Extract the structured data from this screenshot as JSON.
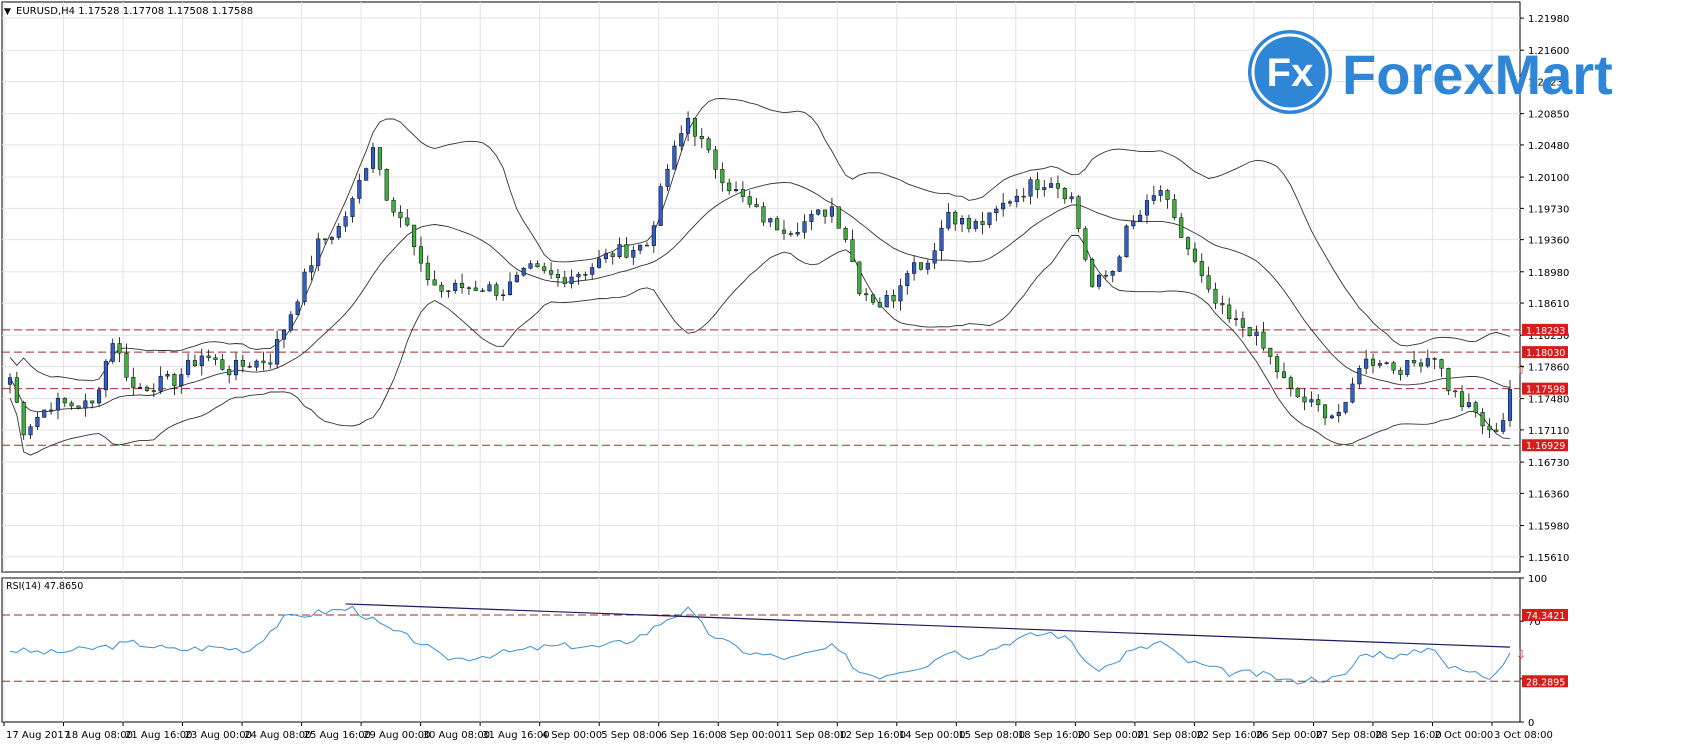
{
  "chart_data": {
    "type": "candlestick",
    "symbol_header": "EURUSD,H4  1.17528 1.17708 1.17508 1.17588",
    "price_axis": {
      "ticks": [
        "1.21980",
        "1.21600",
        "1.21230",
        "1.20850",
        "1.20480",
        "1.20100",
        "1.19730",
        "1.19360",
        "1.18980",
        "1.18610",
        "1.18230",
        "1.17860",
        "1.17480",
        "1.17110",
        "1.16730",
        "1.16360",
        "1.15980",
        "1.15610"
      ],
      "range": [
        1.1543,
        1.2217
      ]
    },
    "horizontal_levels": [
      {
        "price": 1.18293,
        "label": "1.18293"
      },
      {
        "price": 1.1803,
        "label": "1.18030"
      },
      {
        "price": 1.17598,
        "label": "1.17598"
      },
      {
        "price": 1.16929,
        "label": "1.16929"
      }
    ],
    "x_ticks": [
      "17 Aug 2017",
      "18 Aug 08:00",
      "21 Aug 16:00",
      "23 Aug 00:00",
      "24 Aug 08:00",
      "25 Aug 16:00",
      "29 Aug 00:00",
      "30 Aug 08:00",
      "31 Aug 16:00",
      "4 Sep 00:00",
      "5 Sep 08:00",
      "6 Sep 16:00",
      "8 Sep 00:00",
      "11 Sep 08:00",
      "12 Sep 16:00",
      "14 Sep 00:00",
      "15 Sep 08:00",
      "18 Sep 16:00",
      "20 Sep 00:00",
      "21 Sep 08:00",
      "22 Sep 16:00",
      "26 Sep 00:00",
      "27 Sep 08:00",
      "28 Sep 16:00",
      "2 Oct 00:00",
      "3 Oct 08:00"
    ],
    "close_anchors": [
      [
        0,
        1.1773
      ],
      [
        2,
        1.1712
      ],
      [
        6,
        1.1742
      ],
      [
        12,
        1.174
      ],
      [
        15,
        1.1818
      ],
      [
        18,
        1.176
      ],
      [
        24,
        1.177
      ],
      [
        28,
        1.18
      ],
      [
        32,
        1.1782
      ],
      [
        35,
        1.179
      ],
      [
        38,
        1.1795
      ],
      [
        41,
        1.185
      ],
      [
        45,
        1.193
      ],
      [
        48,
        1.195
      ],
      [
        50,
        1.198
      ],
      [
        53,
        1.205
      ],
      [
        55,
        1.199
      ],
      [
        58,
        1.195
      ],
      [
        60,
        1.19
      ],
      [
        63,
        1.1875
      ],
      [
        66,
        1.188
      ],
      [
        69,
        1.188
      ],
      [
        72,
        1.1875
      ],
      [
        76,
        1.19
      ],
      [
        80,
        1.189
      ],
      [
        84,
        1.19
      ],
      [
        88,
        1.192
      ],
      [
        93,
        1.193
      ],
      [
        96,
        1.202
      ],
      [
        99,
        1.208
      ],
      [
        102,
        1.2035
      ],
      [
        105,
        1.2
      ],
      [
        108,
        1.1975
      ],
      [
        111,
        1.1955
      ],
      [
        114,
        1.195
      ],
      [
        117,
        1.196
      ],
      [
        120,
        1.1975
      ],
      [
        122,
        1.194
      ],
      [
        124,
        1.188
      ],
      [
        127,
        1.186
      ],
      [
        129,
        1.187
      ],
      [
        131,
        1.1905
      ],
      [
        134,
        1.191
      ],
      [
        137,
        1.197
      ],
      [
        140,
        1.195
      ],
      [
        143,
        1.196
      ],
      [
        146,
        1.1985
      ],
      [
        149,
        1.2
      ],
      [
        152,
        1.2008
      ],
      [
        155,
        1.1985
      ],
      [
        158,
        1.188
      ],
      [
        161,
        1.19
      ],
      [
        163,
        1.1945
      ],
      [
        166,
        1.1975
      ],
      [
        168,
        1.1995
      ],
      [
        170,
        1.1955
      ],
      [
        172,
        1.1925
      ],
      [
        175,
        1.187
      ],
      [
        178,
        1.184
      ],
      [
        181,
        1.183
      ],
      [
        184,
        1.1795
      ],
      [
        187,
        1.1755
      ],
      [
        190,
        1.174
      ],
      [
        193,
        1.173
      ],
      [
        195,
        1.1735
      ],
      [
        197,
        1.179
      ],
      [
        200,
        1.1795
      ],
      [
        202,
        1.1785
      ],
      [
        204,
        1.1785
      ],
      [
        206,
        1.1795
      ],
      [
        208,
        1.18
      ],
      [
        210,
        1.1762
      ],
      [
        212,
        1.1742
      ],
      [
        214,
        1.173
      ],
      [
        216,
        1.1705
      ],
      [
        218,
        1.1725
      ],
      [
        219,
        1.1759
      ]
    ],
    "bars_count": 220,
    "rsi": {
      "label": "RSI(14) 47.8650",
      "axis_ticks": [
        "100",
        "70",
        "30",
        "0"
      ],
      "levels": [
        {
          "value": 74.3421,
          "label": "74.3421"
        },
        {
          "value": 28.2895,
          "label": "28.2895"
        }
      ],
      "anchors": [
        [
          0,
          50
        ],
        [
          6,
          48
        ],
        [
          12,
          51
        ],
        [
          18,
          55
        ],
        [
          24,
          50
        ],
        [
          30,
          52
        ],
        [
          35,
          50
        ],
        [
          40,
          72
        ],
        [
          45,
          76
        ],
        [
          50,
          79
        ],
        [
          55,
          65
        ],
        [
          60,
          55
        ],
        [
          63,
          45
        ],
        [
          66,
          44
        ],
        [
          69,
          46
        ],
        [
          72,
          48
        ],
        [
          75,
          50
        ],
        [
          78,
          52
        ],
        [
          82,
          53
        ],
        [
          86,
          52
        ],
        [
          90,
          56
        ],
        [
          93,
          62
        ],
        [
          96,
          72
        ],
        [
          99,
          78
        ],
        [
          102,
          62
        ],
        [
          105,
          54
        ],
        [
          108,
          48
        ],
        [
          111,
          46
        ],
        [
          114,
          44
        ],
        [
          117,
          48
        ],
        [
          120,
          52
        ],
        [
          122,
          45
        ],
        [
          124,
          35
        ],
        [
          127,
          32
        ],
        [
          130,
          36
        ],
        [
          134,
          40
        ],
        [
          137,
          50
        ],
        [
          140,
          46
        ],
        [
          143,
          50
        ],
        [
          146,
          56
        ],
        [
          149,
          60
        ],
        [
          152,
          62
        ],
        [
          155,
          56
        ],
        [
          158,
          36
        ],
        [
          161,
          40
        ],
        [
          163,
          48
        ],
        [
          166,
          52
        ],
        [
          168,
          56
        ],
        [
          170,
          48
        ],
        [
          172,
          42
        ],
        [
          175,
          38
        ],
        [
          178,
          34
        ],
        [
          181,
          34
        ],
        [
          184,
          32
        ],
        [
          187,
          28
        ],
        [
          190,
          30
        ],
        [
          193,
          30
        ],
        [
          195,
          32
        ],
        [
          197,
          46
        ],
        [
          200,
          48
        ],
        [
          202,
          46
        ],
        [
          204,
          46
        ],
        [
          206,
          50
        ],
        [
          208,
          52
        ],
        [
          210,
          38
        ],
        [
          212,
          36
        ],
        [
          214,
          34
        ],
        [
          216,
          31
        ],
        [
          218,
          42
        ],
        [
          219,
          47.865
        ]
      ],
      "trendline": [
        [
          49,
          82
        ],
        [
          219,
          52
        ]
      ]
    }
  },
  "logo": {
    "brand_fx": "Fx",
    "brand_a": "Forex",
    "brand_b": "Mart"
  }
}
